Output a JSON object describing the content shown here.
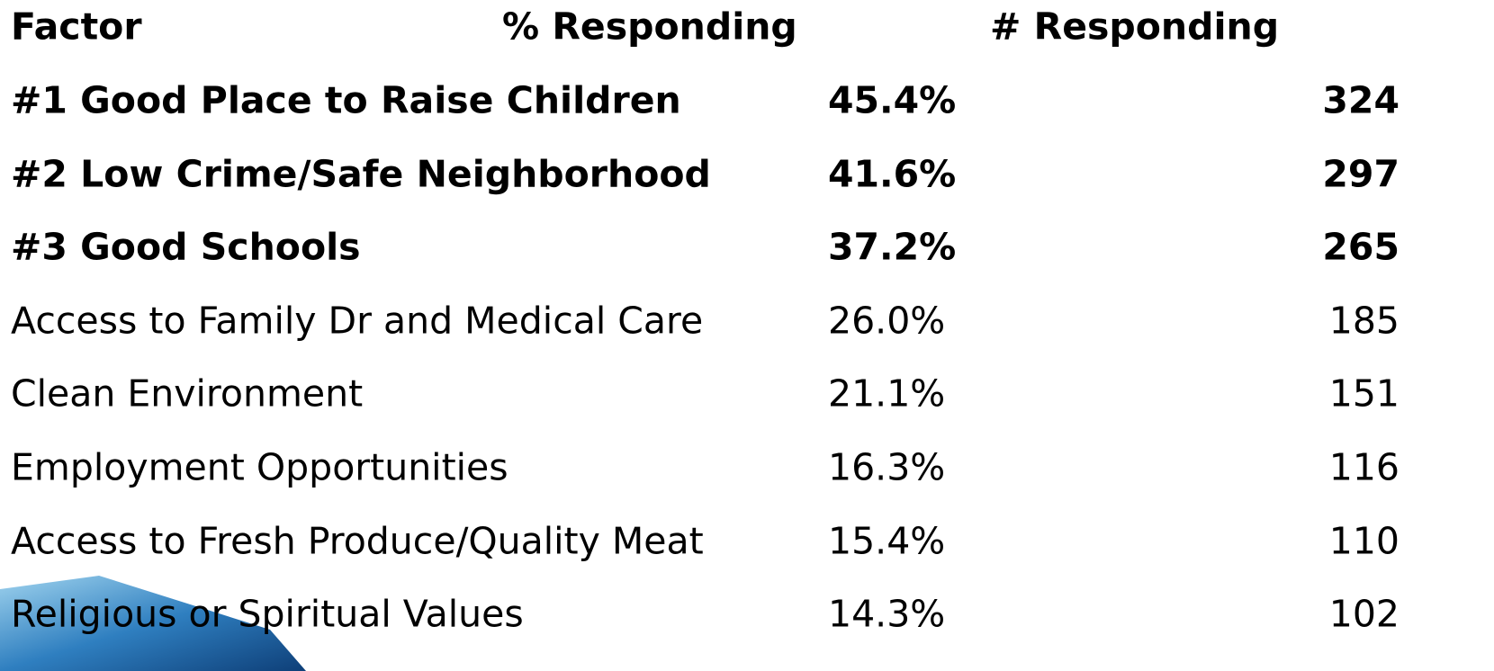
{
  "table": {
    "header": [
      "Factor",
      "% Responding",
      "# Responding"
    ],
    "rows": [
      [
        "#1 Good Place to Raise Children",
        "45.4%",
        "324"
      ],
      [
        "#2 Low Crime/Safe Neighborhood",
        "41.6%",
        "297"
      ],
      [
        "#3 Good Schools",
        "37.2%",
        "265"
      ],
      [
        "Access to Family Dr and Medical Care",
        "26.0%",
        "185"
      ],
      [
        "Clean Environment",
        "21.1%",
        "151"
      ],
      [
        "Employment Opportunities",
        "16.3%",
        "116"
      ],
      [
        "Access to Fresh Produce/Quality Meat",
        "15.4%",
        "110"
      ],
      [
        "Religious or Spiritual Values",
        "14.3%",
        "102"
      ]
    ]
  }
}
